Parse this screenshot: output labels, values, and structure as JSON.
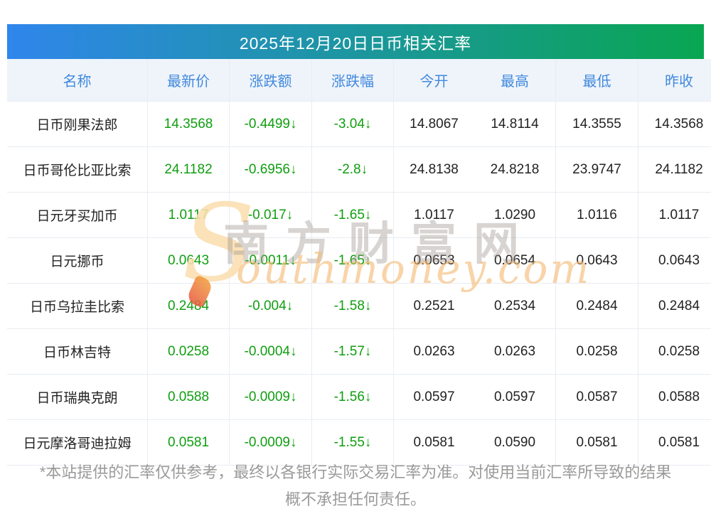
{
  "page": {
    "title": "2025年12月20日日币相关汇率"
  },
  "colors": {
    "header_gradient_left": "#2F86EC",
    "header_gradient_right": "#09A651",
    "header_text": "#FFFFFF",
    "column_header_bg": "#EFF4FB",
    "column_header_text": "#4189DD",
    "value_down": "#0F9E0F",
    "value_neutral": "#222222"
  },
  "table": {
    "columns": [
      "名称",
      "最新价",
      "涨跌额",
      "涨跌幅",
      "今开",
      "最高",
      "最低",
      "昨收"
    ],
    "rows": [
      {
        "name": "日币刚果法郎",
        "latest": "14.3568",
        "change": "-0.4499↓",
        "change_pct": "-3.04↓",
        "open": "14.8067",
        "high": "14.8114",
        "low": "14.3555",
        "prev_close": "14.3568"
      },
      {
        "name": "日币哥伦比亚比索",
        "latest": "24.1182",
        "change": "-0.6956↓",
        "change_pct": "-2.8↓",
        "open": "24.8138",
        "high": "24.8218",
        "low": "23.9747",
        "prev_close": "24.1182"
      },
      {
        "name": "日元牙买加币",
        "latest": "1.0117",
        "change": "-0.017↓",
        "change_pct": "-1.65↓",
        "open": "1.0117",
        "high": "1.0290",
        "low": "1.0116",
        "prev_close": "1.0117"
      },
      {
        "name": "日元挪币",
        "latest": "0.0643",
        "change": "-0.0011↓",
        "change_pct": "-1.65↓",
        "open": "0.0653",
        "high": "0.0654",
        "low": "0.0643",
        "prev_close": "0.0643"
      },
      {
        "name": "日币乌拉圭比索",
        "latest": "0.2484",
        "change": "-0.004↓",
        "change_pct": "-1.58↓",
        "open": "0.2521",
        "high": "0.2534",
        "low": "0.2484",
        "prev_close": "0.2484"
      },
      {
        "name": "日币林吉特",
        "latest": "0.0258",
        "change": "-0.0004↓",
        "change_pct": "-1.57↓",
        "open": "0.0263",
        "high": "0.0263",
        "low": "0.0258",
        "prev_close": "0.0258"
      },
      {
        "name": "日币瑞典克朗",
        "latest": "0.0588",
        "change": "-0.0009↓",
        "change_pct": "-1.56↓",
        "open": "0.0597",
        "high": "0.0597",
        "low": "0.0587",
        "prev_close": "0.0588"
      },
      {
        "name": "日元摩洛哥迪拉姆",
        "latest": "0.0581",
        "change": "-0.0009↓",
        "change_pct": "-1.55↓",
        "open": "0.0581",
        "high": "0.0590",
        "low": "0.0581",
        "prev_close": "0.0581"
      }
    ]
  },
  "watermark": {
    "s_glyph": "S",
    "cn": "南方财富网",
    "en": "outhmoney.com"
  },
  "footer": {
    "line1": "*本站提供的汇率仅供参考，最终以各银行实际交易汇率为准。对使用当前汇率所导致的结果",
    "line2": "概不承担任何责任。"
  }
}
